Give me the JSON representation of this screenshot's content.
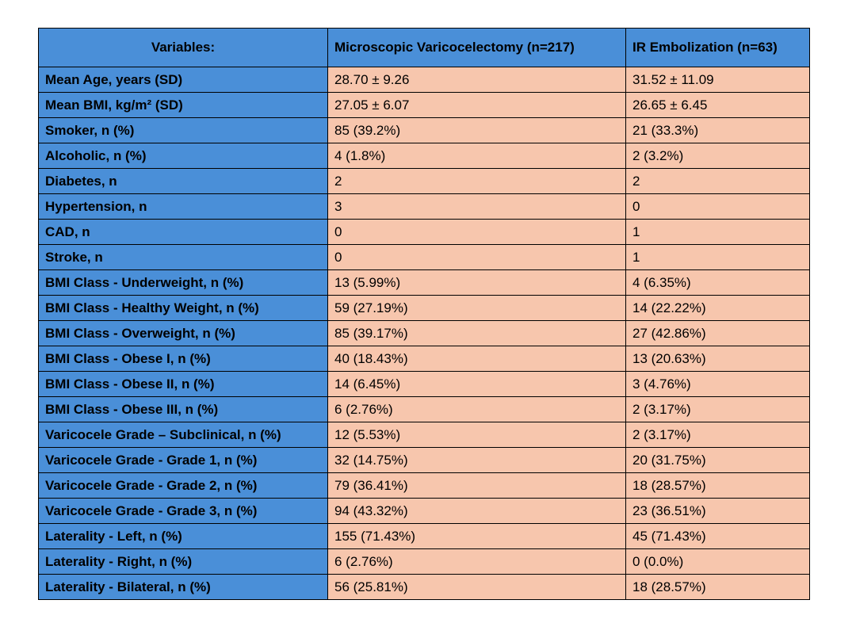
{
  "table": {
    "header": [
      "Variables:",
      "Microscopic Varicocelectomy (n=217)",
      "IR Embolization (n=63)"
    ],
    "rows": [
      [
        "Mean Age, years (SD)",
        "28.70 ± 9.26",
        "31.52 ± 11.09"
      ],
      [
        "Mean BMI, kg/m² (SD)",
        "27.05 ± 6.07",
        "26.65 ± 6.45"
      ],
      [
        "Smoker, n (%)",
        "85 (39.2%)",
        "21 (33.3%)"
      ],
      [
        "Alcoholic, n (%)",
        "4 (1.8%)",
        "2 (3.2%)"
      ],
      [
        "Diabetes, n",
        "2",
        "2"
      ],
      [
        "Hypertension, n",
        "3",
        "0"
      ],
      [
        "CAD, n",
        "0",
        "1"
      ],
      [
        "Stroke, n",
        "0",
        "1"
      ],
      [
        "BMI Class - Underweight, n (%)",
        "13 (5.99%)",
        "4 (6.35%)"
      ],
      [
        "BMI Class - Healthy Weight, n (%)",
        "59 (27.19%)",
        "14 (22.22%)"
      ],
      [
        "BMI Class - Overweight, n (%)",
        "85 (39.17%)",
        "27 (42.86%)"
      ],
      [
        "BMI Class - Obese I, n (%)",
        "40 (18.43%)",
        "13 (20.63%)"
      ],
      [
        "BMI Class - Obese II, n (%)",
        "14 (6.45%)",
        "3 (4.76%)"
      ],
      [
        "BMI Class - Obese III, n (%)",
        "6 (2.76%)",
        "2 (3.17%)"
      ],
      [
        "Varicocele Grade – Subclinical, n (%)",
        "12 (5.53%)",
        "2 (3.17%)"
      ],
      [
        "Varicocele Grade - Grade 1, n (%)",
        "32 (14.75%)",
        "20 (31.75%)"
      ],
      [
        "Varicocele Grade - Grade 2, n (%)",
        "79 (36.41%)",
        "18 (28.57%)"
      ],
      [
        "Varicocele Grade - Grade 3, n (%)",
        "94 (43.32%)",
        "23 (36.51%)"
      ],
      [
        "Laterality - Left, n (%)",
        "155 (71.43%)",
        "45 (71.43%)"
      ],
      [
        "Laterality - Right, n (%)",
        "6 (2.76%)",
        "0 (0.0%)"
      ],
      [
        "Laterality - Bilateral, n (%)",
        "56 (25.81%)",
        "18 (28.57%)"
      ]
    ]
  }
}
